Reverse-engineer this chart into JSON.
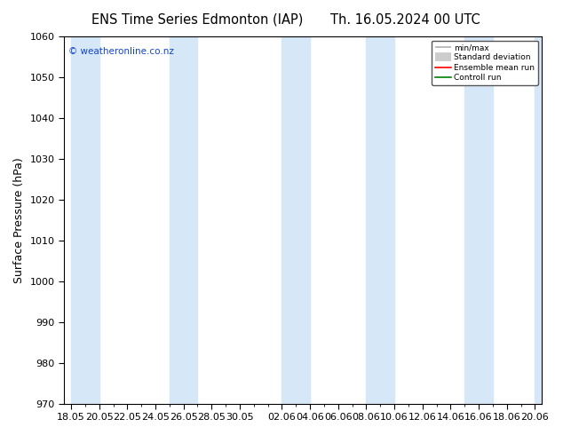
{
  "title_left": "ENS Time Series Edmonton (IAP)",
  "title_right": "Th. 16.05.2024 00 UTC",
  "ylabel": "Surface Pressure (hPa)",
  "ylim": [
    970,
    1060
  ],
  "yticks": [
    970,
    980,
    990,
    1000,
    1010,
    1020,
    1030,
    1040,
    1050,
    1060
  ],
  "xtick_labels": [
    "18.05",
    "20.05",
    "22.05",
    "24.05",
    "26.05",
    "28.05",
    "30.05",
    "02.06",
    "04.06",
    "06.06",
    "08.06",
    "10.06",
    "12.06",
    "14.06",
    "16.06",
    "18.06",
    "20.06"
  ],
  "watermark": "© weatheronline.co.nz",
  "bg_color": "#ffffff",
  "plot_bg_color": "#ffffff",
  "band_color": "#d6e8f7",
  "legend_labels": [
    "min/max",
    "Standard deviation",
    "Ensemble mean run",
    "Controll run"
  ],
  "legend_colors": [
    "#b0b0b0",
    "#cccccc",
    "#ff0000",
    "#008000"
  ],
  "title_fontsize": 10.5,
  "axis_fontsize": 9,
  "tick_fontsize": 8,
  "band_starts": [
    0,
    7,
    15,
    21,
    28
  ],
  "band_widths": [
    2,
    2,
    2,
    2,
    2
  ]
}
